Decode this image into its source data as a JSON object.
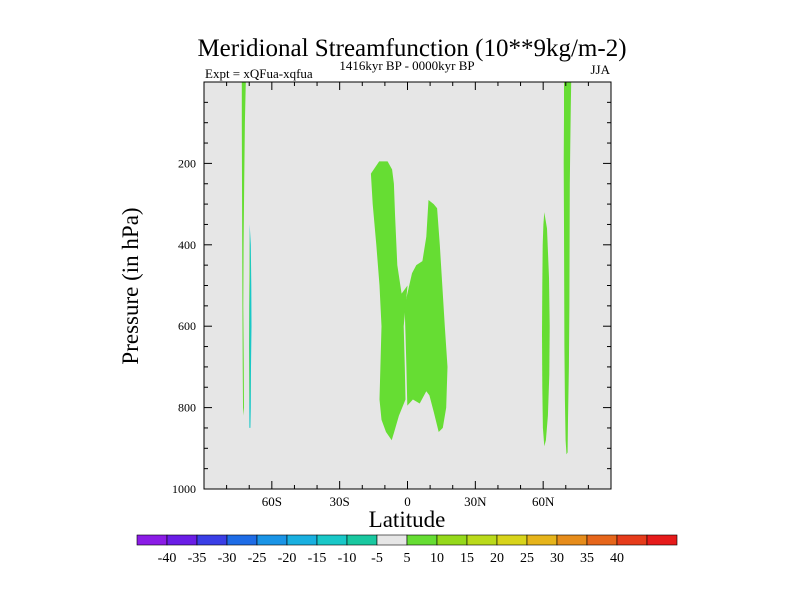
{
  "chart_data": {
    "type": "contour",
    "title": "Meridional Streamfunction (10**9kg/m-2)",
    "subtitle": "1416kyr BP - 0000kyr BP",
    "left_label": "Expt = xQFua-xqfua",
    "right_label": "JJA",
    "xlabel": "Latitude",
    "ylabel": "Pressure (in hPa)",
    "xlim": [
      -90,
      90
    ],
    "ylim": [
      1000,
      0
    ],
    "x_ticks": [
      {
        "value": -60,
        "label": "60S"
      },
      {
        "value": -30,
        "label": "30S"
      },
      {
        "value": 0,
        "label": "0"
      },
      {
        "value": 30,
        "label": "30N"
      },
      {
        "value": 60,
        "label": "60N"
      }
    ],
    "y_ticks": [
      {
        "value": 200,
        "label": "200"
      },
      {
        "value": 400,
        "label": "400"
      },
      {
        "value": 600,
        "label": "600"
      },
      {
        "value": 800,
        "label": "800"
      },
      {
        "value": 1000,
        "label": "1000"
      }
    ],
    "background_color": "#e6e6e6",
    "regions": [
      {
        "name": "nh-high-lat-positive",
        "level": "5 to 10",
        "color": "#66dd33",
        "points": [
          [
            69.2,
            0
          ],
          [
            72.4,
            0
          ],
          [
            72.2,
            60
          ],
          [
            72.0,
            150
          ],
          [
            71.8,
            250
          ],
          [
            71.7,
            400
          ],
          [
            71.6,
            550
          ],
          [
            71.4,
            700
          ],
          [
            71.0,
            830
          ],
          [
            70.8,
            910
          ],
          [
            70.3,
            915
          ],
          [
            69.9,
            880
          ],
          [
            69.6,
            780
          ],
          [
            69.4,
            650
          ],
          [
            69.3,
            500
          ],
          [
            69.2,
            350
          ],
          [
            69.1,
            200
          ],
          [
            69.2,
            80
          ]
        ]
      },
      {
        "name": "nh-60n-positive",
        "level": "5 to 10",
        "color": "#66dd33",
        "points": [
          [
            60.5,
            320
          ],
          [
            61.7,
            360
          ],
          [
            62.6,
            480
          ],
          [
            62.9,
            600
          ],
          [
            62.7,
            720
          ],
          [
            62.1,
            820
          ],
          [
            61.2,
            880
          ],
          [
            60.5,
            895
          ],
          [
            59.9,
            850
          ],
          [
            59.6,
            750
          ],
          [
            59.5,
            620
          ],
          [
            59.6,
            500
          ],
          [
            59.8,
            400
          ],
          [
            60.1,
            350
          ]
        ]
      },
      {
        "name": "tropics-west-positive",
        "level": "5 to 10",
        "color": "#66dd33",
        "points": [
          [
            -16.2,
            225
          ],
          [
            -12.5,
            195
          ],
          [
            -8.8,
            195
          ],
          [
            -6.8,
            215
          ],
          [
            -6.0,
            250
          ],
          [
            -5.5,
            330
          ],
          [
            -4.5,
            450
          ],
          [
            -2.6,
            520
          ],
          [
            0.0,
            500
          ],
          [
            -1.7,
            600
          ],
          [
            -1.2,
            700
          ],
          [
            -0.9,
            780
          ],
          [
            -3.8,
            820
          ],
          [
            -5.9,
            860
          ],
          [
            -7.0,
            880
          ],
          [
            -9.5,
            860
          ],
          [
            -11.5,
            830
          ],
          [
            -12.4,
            780
          ],
          [
            -12.0,
            700
          ],
          [
            -11.5,
            600
          ],
          [
            -12.4,
            500
          ],
          [
            -13.8,
            400
          ],
          [
            -15.4,
            300
          ]
        ]
      },
      {
        "name": "tropics-east-positive",
        "level": "5 to 10",
        "color": "#66dd33",
        "points": [
          [
            -1.3,
            550
          ],
          [
            2.0,
            470
          ],
          [
            3.9,
            450
          ],
          [
            6.6,
            440
          ],
          [
            8.3,
            380
          ],
          [
            9.3,
            290
          ],
          [
            11.6,
            300
          ],
          [
            13.1,
            310
          ],
          [
            14.3,
            400
          ],
          [
            15.4,
            500
          ],
          [
            16.5,
            600
          ],
          [
            17.7,
            700
          ],
          [
            17.1,
            800
          ],
          [
            15.6,
            850
          ],
          [
            13.8,
            860
          ],
          [
            11.6,
            810
          ],
          [
            9.7,
            770
          ],
          [
            8.3,
            760
          ],
          [
            5.4,
            790
          ],
          [
            2.4,
            780
          ],
          [
            -0.1,
            795
          ],
          [
            -0.5,
            700
          ],
          [
            -0.9,
            620
          ]
        ]
      },
      {
        "name": "sh-high-lat-positive",
        "level": "5 to 10",
        "color": "#66dd33",
        "points": [
          [
            -73.3,
            0
          ],
          [
            -71.5,
            0
          ],
          [
            -71.9,
            100
          ],
          [
            -72.2,
            250
          ],
          [
            -72.5,
            400
          ],
          [
            -72.6,
            550
          ],
          [
            -72.4,
            700
          ],
          [
            -72.3,
            800
          ],
          [
            -72.7,
            820
          ],
          [
            -72.9,
            700
          ],
          [
            -73.0,
            550
          ],
          [
            -73.1,
            400
          ],
          [
            -73.2,
            250
          ],
          [
            -73.3,
            100
          ]
        ]
      },
      {
        "name": "sh-high-lat-negative",
        "level": "-10 to -5",
        "color": "#19c8c8",
        "points": [
          [
            -69.8,
            350
          ],
          [
            -69.3,
            400
          ],
          [
            -69.1,
            500
          ],
          [
            -69.0,
            600
          ],
          [
            -69.2,
            700
          ],
          [
            -69.3,
            800
          ],
          [
            -69.5,
            850
          ],
          [
            -69.9,
            850
          ],
          [
            -70.0,
            760
          ],
          [
            -70.1,
            650
          ],
          [
            -70.0,
            550
          ],
          [
            -69.8,
            450
          ]
        ]
      },
      {
        "name": "sh-high-lat-weak-positive",
        "level": "5 to 10",
        "color": "#66dd33",
        "points": [
          [
            -69.7,
            360
          ],
          [
            -69.6,
            450
          ],
          [
            -69.7,
            550
          ],
          [
            -69.7,
            650
          ],
          [
            -69.6,
            760
          ],
          [
            -69.8,
            800
          ],
          [
            -69.9,
            700
          ],
          [
            -69.9,
            600
          ],
          [
            -69.9,
            500
          ],
          [
            -69.8,
            400
          ]
        ]
      }
    ],
    "colorbar": {
      "colors": [
        "#8b1ce6",
        "#6a1de6",
        "#3a3ee6",
        "#1e6ce6",
        "#1a94e6",
        "#19b0e0",
        "#19c8c8",
        "#19c8a0",
        "#e6e6e6",
        "#66dd33",
        "#95d91b",
        "#bada1b",
        "#d8d41b",
        "#e6b41b",
        "#e68c1b",
        "#e6661b",
        "#e63c1b",
        "#e61b1b"
      ],
      "labels": [
        "-40",
        "-35",
        "-30",
        "-25",
        "-20",
        "-15",
        "-10",
        "-5",
        "5",
        "10",
        "15",
        "20",
        "25",
        "30",
        "35",
        "40"
      ]
    }
  }
}
